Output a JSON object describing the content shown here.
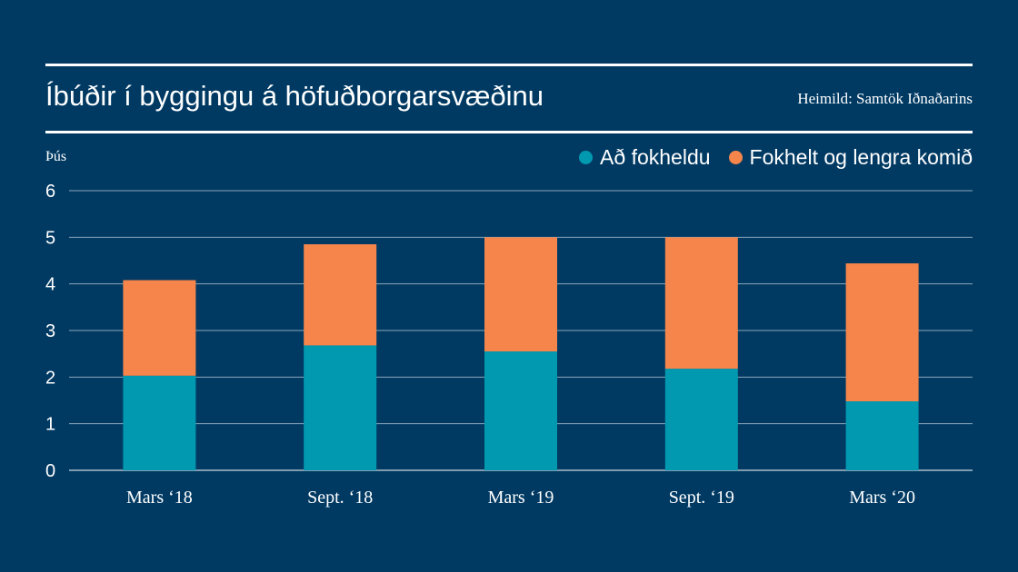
{
  "chart_data": {
    "type": "bar",
    "stacked": true,
    "title": "Íbúðir í byggingu á höfuðborgarsvæðinu",
    "source": "Heimild: Samtök Iðnaðarins",
    "ylabel": "Þús",
    "xlabel": "",
    "ylim": [
      0,
      6
    ],
    "yticks": [
      "0",
      "1",
      "2",
      "3",
      "4",
      "5",
      "6"
    ],
    "grid": true,
    "legend_position": "top-right",
    "categories": [
      "Mars ‘18",
      "Sept. ‘18",
      "Mars ‘19",
      "Sept. ‘19",
      "Mars ‘20"
    ],
    "series": [
      {
        "name": "Að fokheldu",
        "color": "#0099b0",
        "values": [
          2.03,
          2.68,
          2.55,
          2.18,
          1.48
        ]
      },
      {
        "name": "Fokhelt og lengra komið",
        "color": "#f5854b",
        "values": [
          2.05,
          2.17,
          2.45,
          2.82,
          2.96
        ]
      }
    ]
  }
}
